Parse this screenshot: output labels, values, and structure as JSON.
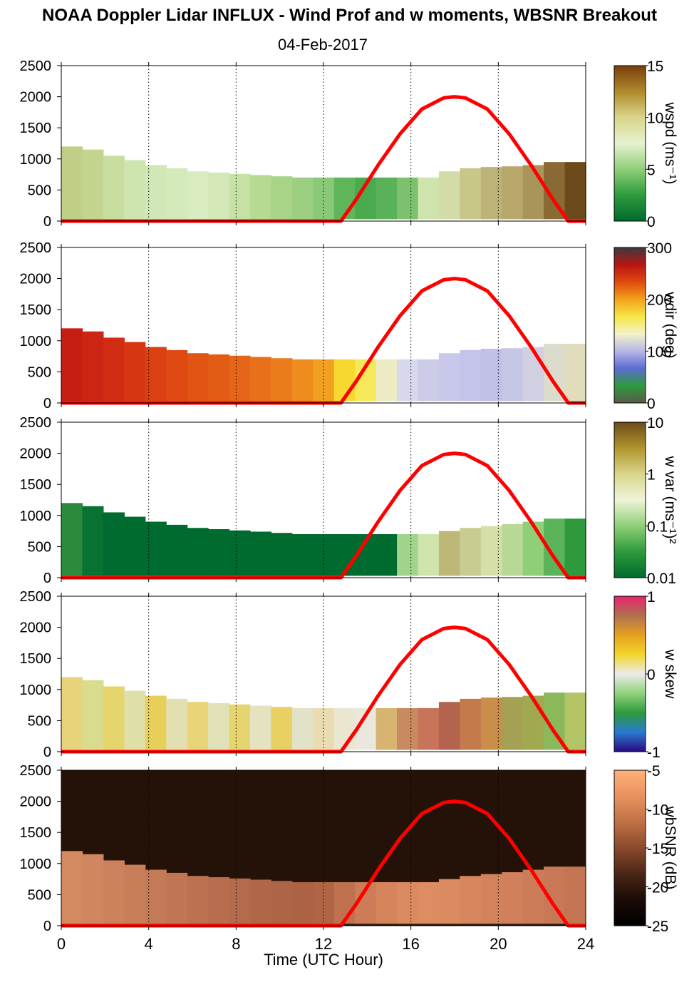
{
  "title": "NOAA Doppler Lidar INFLUX - Wind Prof and w moments, WBSNR Breakout",
  "date": "04-Feb-2017",
  "chart_data": {
    "type": "heatmap",
    "xlabel": "Time (UTC Hour)",
    "xlim": [
      0,
      24
    ],
    "xticks": [
      0,
      4,
      8,
      12,
      16,
      20,
      24
    ],
    "ylim": [
      0,
      2500
    ],
    "yticks": [
      0,
      500,
      1000,
      1500,
      2000,
      2500
    ],
    "sun_elevation_curve": {
      "color": "#ff0000",
      "x": [
        0,
        12.8,
        13.5,
        14.5,
        15.5,
        16.5,
        17.5,
        18,
        18.5,
        19.5,
        20.5,
        21.5,
        22.5,
        23.2,
        24
      ],
      "y": [
        0,
        0,
        350,
        900,
        1400,
        1800,
        1980,
        2000,
        1980,
        1800,
        1400,
        900,
        350,
        0,
        0
      ]
    },
    "panels": [
      {
        "colorbar_label": "wspd (ms⁻¹)",
        "colorbar_ticks": [
          "15",
          "10",
          "5",
          "0"
        ],
        "colorscale": [
          "#7a3d0a",
          "#b08a2c",
          "#d9d58a",
          "#e6f2d0",
          "#8fcf78",
          "#2e9a3c",
          "#006b2e"
        ],
        "data_top": [
          1200,
          1150,
          1050,
          980,
          900,
          850,
          800,
          780,
          760,
          740,
          720,
          700,
          700,
          700,
          700,
          700,
          700,
          700,
          800,
          850,
          870,
          880,
          900,
          950,
          950
        ],
        "fill": [
          "#bfcf86",
          "#c2d48e",
          "#c8dda0",
          "#cfe5b0",
          "#d2e7b8",
          "#d5eabb",
          "#d8ecc0",
          "#d3e8b6",
          "#c5e2a4",
          "#b6da92",
          "#a8d488",
          "#9ccf80",
          "#8ac978",
          "#5fb65a",
          "#4aaa4e",
          "#59b25a",
          "#7cc26e",
          "#cfe3ad",
          "#d3dca6",
          "#c8c688",
          "#bdb378",
          "#b7a76a",
          "#a9955a",
          "#8a6a34",
          "#6d4a1a"
        ]
      },
      {
        "colorbar_label": "wdir (deg)",
        "colorbar_ticks": [
          "300",
          "200",
          "100",
          "0"
        ],
        "colorscale": [
          "#3b3b3b",
          "#b81414",
          "#e04a10",
          "#f2a21a",
          "#f5e646",
          "#f2f2c8",
          "#b6b6e8",
          "#5c6cd0",
          "#2e9a3c",
          "#5a5a4a"
        ],
        "data_top": [
          1200,
          1150,
          1050,
          980,
          900,
          850,
          800,
          780,
          760,
          740,
          720,
          700,
          700,
          700,
          700,
          700,
          700,
          700,
          800,
          850,
          870,
          880,
          900,
          950,
          950
        ],
        "fill": [
          "#c71e14",
          "#cc2514",
          "#d12d12",
          "#d73612",
          "#db4012",
          "#de4a12",
          "#e05414",
          "#e25c16",
          "#e56618",
          "#e8701a",
          "#ea7c1c",
          "#ee8c1e",
          "#f1a022",
          "#f6d82e",
          "#f5e85a",
          "#ecebc4",
          "#d8d8ec",
          "#cccce8",
          "#c8c8ea",
          "#c4c4ea",
          "#c0c0e8",
          "#c6c6e6",
          "#d0d0e2",
          "#dcdccc",
          "#e0dcbc"
        ]
      },
      {
        "colorbar_label": "w var (ms⁻¹)²",
        "colorbar_ticks": [
          "10",
          "1",
          "0.1",
          "0.01"
        ],
        "colorscale": [
          "#6d4a1a",
          "#b0952c",
          "#d9d58a",
          "#eef5d8",
          "#8fcf78",
          "#2e9a3c",
          "#006b2e"
        ],
        "data_top": [
          1200,
          1150,
          1050,
          980,
          900,
          850,
          800,
          780,
          760,
          740,
          720,
          700,
          700,
          700,
          700,
          700,
          700,
          700,
          750,
          800,
          830,
          860,
          900,
          950,
          950
        ],
        "fill": [
          "#2b8a3c",
          "#087232",
          "#006b2e",
          "#006b2e",
          "#006b2e",
          "#006b2e",
          "#006b2e",
          "#006b2e",
          "#006b2e",
          "#006b2e",
          "#006b2e",
          "#006b2e",
          "#006b2e",
          "#006b2e",
          "#006b2e",
          "#006b2e",
          "#9fd48a",
          "#cfe3ad",
          "#bdb778",
          "#c9cc90",
          "#d5e0a8",
          "#b8d896",
          "#8fcf78",
          "#5cb45a",
          "#2e9a3c"
        ]
      },
      {
        "colorbar_label": "w skew",
        "colorbar_ticks": [
          "1",
          "0",
          "-1"
        ],
        "colorscale": [
          "#e6246e",
          "#b07050",
          "#e6a020",
          "#f2d62a",
          "#ebebeb",
          "#8fd27a",
          "#2e9a3c",
          "#2a7ad0",
          "#2a0a80"
        ],
        "data_top": [
          1200,
          1150,
          1050,
          980,
          900,
          850,
          800,
          780,
          760,
          740,
          720,
          700,
          700,
          700,
          700,
          700,
          700,
          700,
          800,
          850,
          870,
          880,
          900,
          950,
          950
        ],
        "fill": [
          "#e8d37a",
          "#d9dc8e",
          "#e6d56c",
          "#dfe0a8",
          "#e8cf5a",
          "#e2e0b0",
          "#ead47a",
          "#dfe2b8",
          "#e6d46e",
          "#e4e2c0",
          "#e8d062",
          "#e2e2c8",
          "#e8dcb0",
          "#ebe6d0",
          "#eae8dc",
          "#d8b472",
          "#c88a5e",
          "#c8745a",
          "#b4644e",
          "#c47a4a",
          "#c88e4a",
          "#a4a054",
          "#a0a850",
          "#8ab85a",
          "#b2c464"
        ]
      },
      {
        "colorbar_label": "wbSNR (dB)",
        "colorbar_ticks": [
          "-5",
          "-10",
          "-15",
          "-20",
          "-25"
        ],
        "colorscale": [
          "#ffb07a",
          "#e8925e",
          "#c07046",
          "#8a4a2c",
          "#4a2616",
          "#1a0c06",
          "#000000"
        ],
        "data_top": [
          1200,
          1150,
          1050,
          980,
          900,
          850,
          800,
          780,
          760,
          740,
          720,
          700,
          700,
          700,
          700,
          700,
          700,
          700,
          750,
          800,
          830,
          860,
          900,
          950,
          950
        ],
        "fill": [
          "#d48a60",
          "#d08660",
          "#cc825c",
          "#c87e58",
          "#c47a56",
          "#c07654",
          "#bc7250",
          "#b86e4e",
          "#b46a4c",
          "#b06648",
          "#ae6446",
          "#ac6244",
          "#b06646",
          "#c07250",
          "#cc7c56",
          "#d6845c",
          "#dc8a60",
          "#de8c62",
          "#dc8a60",
          "#d8865e",
          "#d4825c",
          "#d0805a",
          "#cc7c58",
          "#c87856",
          "#c47654"
        ]
      }
    ]
  }
}
